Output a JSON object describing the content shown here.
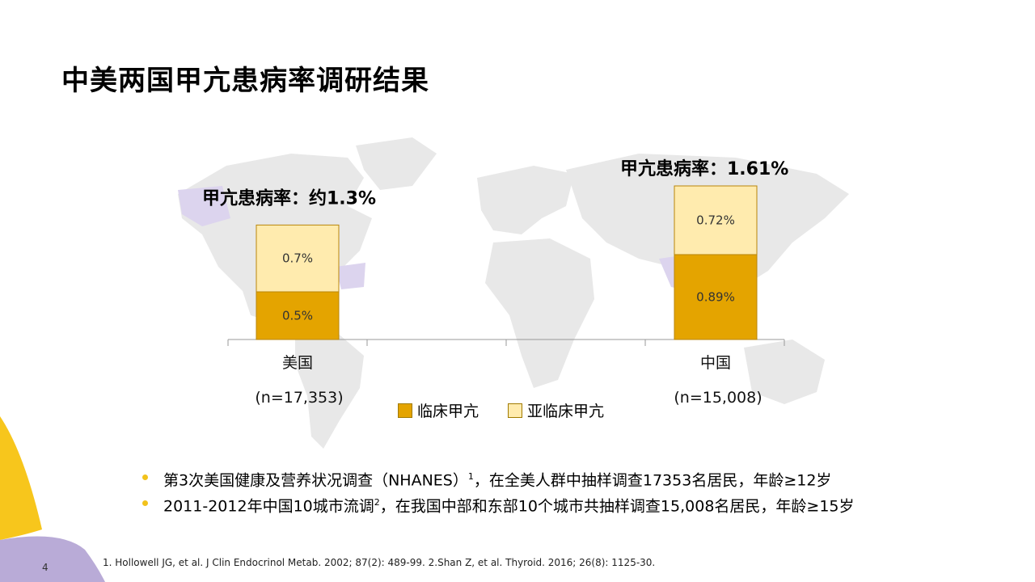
{
  "page": {
    "title": "中美两国甲亢患病率调研结果",
    "page_number": "4",
    "footnote": "1. Hollowell JG, et al. J Clin Endocrinol Metab. 2002; 87(2): 489-99.  2.Shan Z, et al. Thyroid. 2016; 26(8): 1125-30.",
    "bullets": [
      {
        "text": "第3次美国健康及营养状况调查（NHANES）",
        "sup": "1",
        "tail": "，在全美人群中抽样调查17353名居民，年龄≥12岁"
      },
      {
        "text": "2011-2012年中国10城市流调",
        "sup": "2",
        "tail": "，在我国中部和东部10个城市共抽样调查15,008名居民，年龄≥15岁"
      }
    ],
    "colors": {
      "clinical": "#E4A400",
      "subclinical": "#FFEBAE",
      "accent_yellow": "#F2C21B",
      "accent_purple": "#B7A9D6",
      "map_gray": "#E6E6E6",
      "map_highlight": "#DCD4EE"
    }
  },
  "chart_data": {
    "type": "bar",
    "stacked": true,
    "categories": [
      "美国",
      "中国"
    ],
    "category_notes": [
      "(n=17,353)",
      "(n=15,008)"
    ],
    "series": [
      {
        "name": "临床甲亢",
        "values": [
          0.5,
          0.89
        ],
        "labels": [
          "0.5%",
          "0.89%"
        ],
        "color": "#E4A400"
      },
      {
        "name": "亚临床甲亢",
        "values": [
          0.7,
          0.72
        ],
        "labels": [
          "0.7%",
          "0.72%"
        ],
        "color": "#FFEBAE"
      }
    ],
    "totals_labels": [
      "甲亢患病率：约1.3%",
      "甲亢患病率：1.61%"
    ],
    "legend": [
      "临床甲亢",
      "亚临床甲亢"
    ],
    "ylim": [
      0,
      1.61
    ],
    "grid": false
  }
}
